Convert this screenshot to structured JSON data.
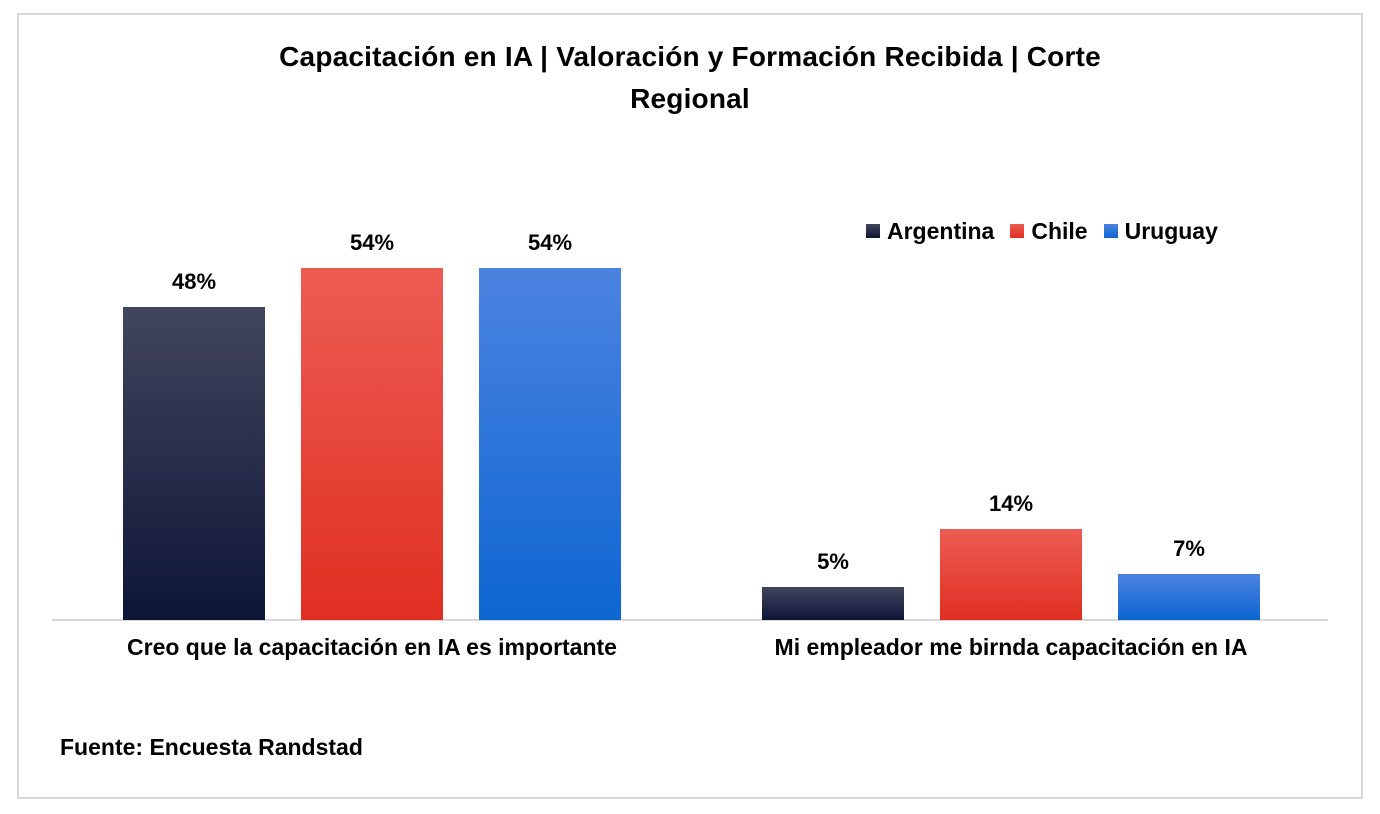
{
  "chart": {
    "title_lines": [
      "Capacitación en IA | Valoración y Formación Recibida | Corte",
      "Regional"
    ],
    "source": "Fuente: Encuesta Randstad"
  },
  "chart_data": {
    "type": "bar",
    "title": "Capacitación en IA | Valoración y Formación Recibida | Corte Regional",
    "categories": [
      "Creo que la capacitación en IA es importante",
      "Mi empleador me birnda capacitación en IA"
    ],
    "series": [
      {
        "name": "Argentina",
        "values": [
          48,
          5
        ],
        "color_top": "#41465c",
        "color_bottom": "#0d1537"
      },
      {
        "name": "Chile",
        "values": [
          54,
          14
        ],
        "color_top": "#ed5c53",
        "color_bottom": "#e02f22"
      },
      {
        "name": "Uruguay",
        "values": [
          54,
          7
        ],
        "color_top": "#4c83e1",
        "color_bottom": "#0d66d1"
      }
    ],
    "value_suffix": "%",
    "value_labels": [
      [
        "48%",
        "5%"
      ],
      [
        "54%",
        "14%"
      ],
      [
        "54%",
        "7%"
      ]
    ],
    "xlabel": "",
    "ylabel": "",
    "ylim": [
      0,
      60
    ],
    "grid": false,
    "legend_position": "top-right",
    "axis_color": "#d9d9d9",
    "border_color": "#d9d9d9",
    "text_color": "#000000",
    "background_color": "#ffffff"
  }
}
